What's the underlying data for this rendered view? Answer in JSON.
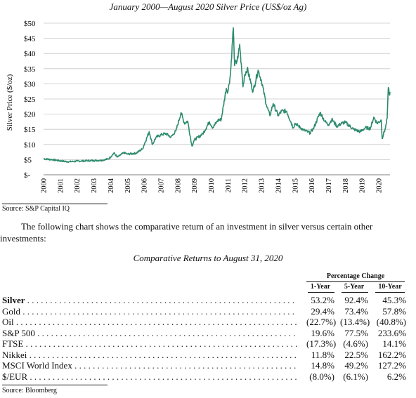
{
  "chart_data": {
    "type": "line",
    "title": "January 2000—August 2020 Silver Price (US$/oz Ag)",
    "ylabel": "Silver Price ($/oz)",
    "xlabel": "",
    "ylim": [
      0,
      50
    ],
    "xlim": [
      2000,
      2020.67
    ],
    "y_ticks": [
      "$-",
      "$5",
      "$10",
      "$15",
      "$20",
      "$25",
      "$30",
      "$35",
      "$40",
      "$45",
      "$50"
    ],
    "x_ticks": [
      "2000",
      "2001",
      "2002",
      "2003",
      "2004",
      "2005",
      "2006",
      "2007",
      "2008",
      "2009",
      "2010",
      "2011",
      "2012",
      "2013",
      "2014",
      "2015",
      "2016",
      "2017",
      "2018",
      "2019",
      "2020"
    ],
    "grid": "horizontal",
    "color": "#2e8b6e",
    "series": [
      {
        "name": "",
        "points": [
          [
            2000.0,
            5.3
          ],
          [
            2000.5,
            5.0
          ],
          [
            2001.0,
            4.6
          ],
          [
            2001.5,
            4.3
          ],
          [
            2002.0,
            4.5
          ],
          [
            2002.5,
            4.6
          ],
          [
            2003.0,
            4.7
          ],
          [
            2003.5,
            4.8
          ],
          [
            2003.9,
            5.3
          ],
          [
            2004.2,
            7.2
          ],
          [
            2004.4,
            5.8
          ],
          [
            2004.8,
            7.3
          ],
          [
            2005.0,
            6.8
          ],
          [
            2005.5,
            7.1
          ],
          [
            2005.9,
            8.5
          ],
          [
            2006.3,
            14.2
          ],
          [
            2006.5,
            10.0
          ],
          [
            2006.7,
            12.3
          ],
          [
            2007.0,
            13.2
          ],
          [
            2007.3,
            13.6
          ],
          [
            2007.6,
            12.4
          ],
          [
            2007.9,
            14.5
          ],
          [
            2008.2,
            20.5
          ],
          [
            2008.4,
            17.0
          ],
          [
            2008.6,
            17.7
          ],
          [
            2008.85,
            9.5
          ],
          [
            2009.0,
            11.5
          ],
          [
            2009.5,
            13.5
          ],
          [
            2009.9,
            17.5
          ],
          [
            2010.1,
            15.5
          ],
          [
            2010.4,
            18.0
          ],
          [
            2010.6,
            18.2
          ],
          [
            2010.9,
            28.5
          ],
          [
            2011.0,
            27.5
          ],
          [
            2011.15,
            33.0
          ],
          [
            2011.32,
            48.5
          ],
          [
            2011.4,
            36.0
          ],
          [
            2011.6,
            38.5
          ],
          [
            2011.7,
            43.0
          ],
          [
            2011.9,
            29.0
          ],
          [
            2012.0,
            33.0
          ],
          [
            2012.15,
            35.0
          ],
          [
            2012.5,
            27.5
          ],
          [
            2012.8,
            34.5
          ],
          [
            2013.0,
            31.0
          ],
          [
            2013.3,
            23.0
          ],
          [
            2013.5,
            19.5
          ],
          [
            2013.7,
            23.5
          ],
          [
            2014.0,
            19.5
          ],
          [
            2014.2,
            21.0
          ],
          [
            2014.5,
            21.0
          ],
          [
            2014.9,
            15.5
          ],
          [
            2015.0,
            17.0
          ],
          [
            2015.5,
            14.8
          ],
          [
            2015.9,
            13.8
          ],
          [
            2016.1,
            15.2
          ],
          [
            2016.5,
            20.5
          ],
          [
            2016.8,
            17.5
          ],
          [
            2017.0,
            16.5
          ],
          [
            2017.2,
            18.3
          ],
          [
            2017.5,
            16.0
          ],
          [
            2017.8,
            17.0
          ],
          [
            2018.0,
            17.3
          ],
          [
            2018.5,
            15.0
          ],
          [
            2018.9,
            14.2
          ],
          [
            2019.2,
            15.5
          ],
          [
            2019.5,
            15.3
          ],
          [
            2019.7,
            19.0
          ],
          [
            2019.9,
            17.0
          ],
          [
            2020.15,
            18.0
          ],
          [
            2020.2,
            12.0
          ],
          [
            2020.4,
            15.5
          ],
          [
            2020.5,
            18.5
          ],
          [
            2020.57,
            28.8
          ],
          [
            2020.63,
            26.5
          ],
          [
            2020.67,
            27.3
          ]
        ]
      }
    ]
  },
  "chart_source": "Source: S&P Capital IQ",
  "paragraph": "The following chart shows the comparative return of an investment in silver versus certain other investments:",
  "table": {
    "title": "Comparative Returns to August 31, 2020",
    "group_header": "Percentage Change",
    "columns": [
      "1-Year",
      "5-Year",
      "10-Year"
    ],
    "rows": [
      {
        "name": "Silver",
        "v1": "53.2%",
        "v5": "92.4%",
        "v10": "45.3%"
      },
      {
        "name": "Gold",
        "v1": "29.4%",
        "v5": "73.4%",
        "v10": "57.8%"
      },
      {
        "name": "Oil",
        "v1": "(22.7%)",
        "v5": "(13.4%)",
        "v10": "(40.8%)"
      },
      {
        "name": "S&P 500",
        "v1": "19.6%",
        "v5": "77.5%",
        "v10": "233.6%"
      },
      {
        "name": "FTSE",
        "v1": "(17.3%)",
        "v5": "(4.6%)",
        "v10": "14.1%"
      },
      {
        "name": "Nikkei",
        "v1": "11.8%",
        "v5": "22.5%",
        "v10": "162.2%"
      },
      {
        "name": "MSCI World Index",
        "v1": "14.8%",
        "v5": "49.2%",
        "v10": "127.2%"
      },
      {
        "name": "$/EUR",
        "v1": "(8.0%)",
        "v5": "(6.1%)",
        "v10": "6.2%"
      }
    ],
    "source": "Source: Bloomberg"
  }
}
